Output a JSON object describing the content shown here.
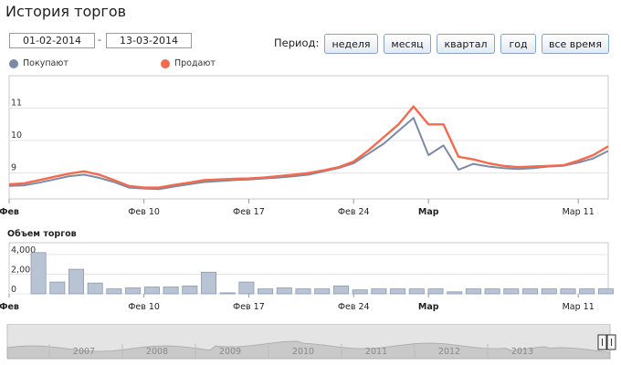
{
  "page": {
    "title": "История торгов"
  },
  "range": {
    "from": "01-02-2014",
    "separator": "-",
    "to": "13-03-2014"
  },
  "period": {
    "label": "Период:",
    "buttons": [
      {
        "label": "неделя"
      },
      {
        "label": "месяц"
      },
      {
        "label": "квартал"
      },
      {
        "label": "год"
      },
      {
        "label": "все время"
      }
    ]
  },
  "legend": {
    "buy": {
      "label": "Покупают",
      "color": "#7d8aa4"
    },
    "sell": {
      "label": "Продают",
      "color": "#f26b4f"
    }
  },
  "volume": {
    "title": "Объем торгов",
    "bar_color": "#b8c3d3",
    "bar_border": "#8d9bb1"
  },
  "navigator": {
    "years": [
      "2007",
      "2008",
      "2009",
      "2010",
      "2011",
      "2012",
      "2013"
    ]
  },
  "chart_data": [
    {
      "type": "line",
      "x": [
        "01.02",
        "02.02",
        "03.02",
        "04.02",
        "05.02",
        "06.02",
        "07.02",
        "08.02",
        "09.02",
        "10.02",
        "11.02",
        "12.02",
        "13.02",
        "14.02",
        "15.02",
        "16.02",
        "17.02",
        "18.02",
        "19.02",
        "20.02",
        "21.02",
        "22.02",
        "23.02",
        "24.02",
        "25.02",
        "26.02",
        "27.02",
        "28.02",
        "01.03",
        "02.03",
        "03.03",
        "04.03",
        "05.03",
        "06.03",
        "07.03",
        "08.03",
        "09.03",
        "10.03",
        "11.03",
        "12.03",
        "13.03"
      ],
      "x_tick_labels": [
        {
          "label": "Фев",
          "at": "01.02",
          "bold": true
        },
        {
          "label": "Фев 10",
          "at": "10.02",
          "bold": false
        },
        {
          "label": "Фев 17",
          "at": "17.02",
          "bold": false
        },
        {
          "label": "Фев 24",
          "at": "24.02",
          "bold": false
        },
        {
          "label": "Мар",
          "at": "01.03",
          "bold": true
        },
        {
          "label": "Мар 11",
          "at": "11.03",
          "bold": false
        }
      ],
      "y_ticks": [
        9,
        10,
        11
      ],
      "ylim": [
        8.2,
        12.0
      ],
      "grid": true,
      "series": [
        {
          "name": "Покупают",
          "color": "#7d8aa4",
          "values": [
            8.6,
            8.62,
            8.7,
            8.8,
            8.9,
            8.95,
            8.85,
            8.72,
            8.55,
            8.52,
            8.5,
            8.58,
            8.65,
            8.72,
            8.75,
            8.78,
            8.8,
            8.83,
            8.86,
            8.9,
            8.95,
            9.05,
            9.15,
            9.3,
            9.6,
            9.9,
            10.3,
            10.7,
            9.55,
            9.85,
            9.1,
            9.28,
            9.2,
            9.15,
            9.12,
            9.15,
            9.2,
            9.22,
            9.32,
            9.45,
            9.68
          ]
        },
        {
          "name": "Продают",
          "color": "#f26b4f",
          "values": [
            8.65,
            8.68,
            8.78,
            8.88,
            8.98,
            9.05,
            8.95,
            8.78,
            8.6,
            8.55,
            8.55,
            8.63,
            8.7,
            8.78,
            8.8,
            8.82,
            8.83,
            8.86,
            8.9,
            8.95,
            9.0,
            9.08,
            9.18,
            9.35,
            9.7,
            10.1,
            10.5,
            11.05,
            10.5,
            10.5,
            9.5,
            9.42,
            9.3,
            9.22,
            9.18,
            9.2,
            9.22,
            9.24,
            9.38,
            9.55,
            9.82
          ]
        }
      ]
    },
    {
      "type": "bar",
      "title": "Объем торгов",
      "y_ticks": [
        0,
        2000,
        4000
      ],
      "y_tick_labels": [
        "0",
        "2,000",
        "4,000"
      ],
      "ylim": [
        0,
        5200
      ],
      "values": [
        4200,
        1200,
        2500,
        1100,
        500,
        600,
        700,
        700,
        800,
        2200,
        100,
        1200,
        500,
        600,
        500,
        500,
        800,
        400,
        500,
        500,
        500,
        500,
        200,
        500,
        500,
        500,
        500,
        500,
        500,
        500,
        500
      ]
    }
  ]
}
